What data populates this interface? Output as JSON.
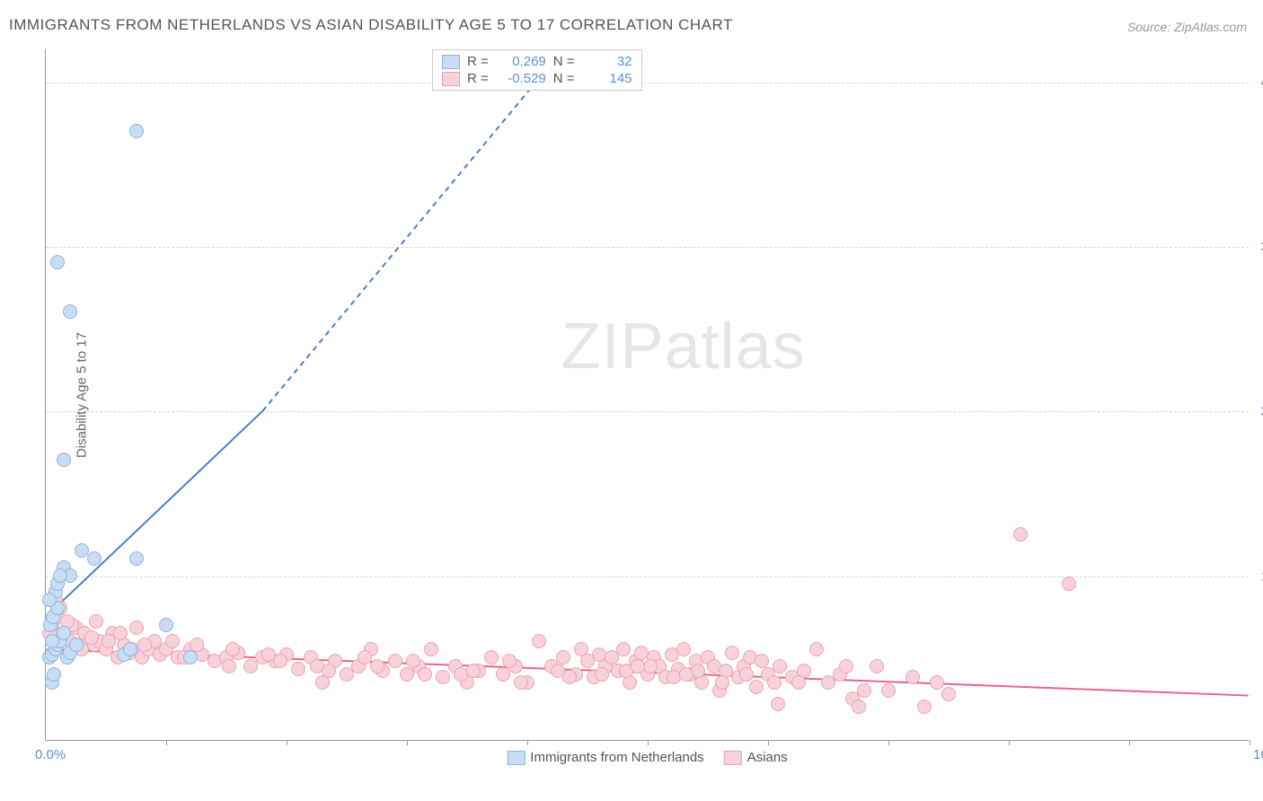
{
  "title": "IMMIGRANTS FROM NETHERLANDS VS ASIAN DISABILITY AGE 5 TO 17 CORRELATION CHART",
  "source": "Source: ZipAtlas.com",
  "yaxis_title": "Disability Age 5 to 17",
  "watermark_zip": "ZIP",
  "watermark_atlas": "atlas",
  "chart": {
    "type": "scatter",
    "xlim": [
      0,
      100
    ],
    "ylim": [
      0,
      42
    ],
    "xticks": [
      0,
      10,
      20,
      30,
      40,
      50,
      60,
      70,
      80,
      90,
      100
    ],
    "yticks": [
      10,
      20,
      30,
      40
    ],
    "xtick_label_min": "0.0%",
    "xtick_label_max": "100.0%",
    "ytick_labels": [
      "10.0%",
      "20.0%",
      "30.0%",
      "40.0%"
    ],
    "background_color": "#ffffff",
    "grid_color": "#d8d8d8",
    "axis_color": "#999999",
    "tick_label_color": "#5b8fd6",
    "axis_title_color": "#666666",
    "marker_radius": 8,
    "marker_stroke_width": 1.5,
    "series": [
      {
        "name": "Immigrants from Netherlands",
        "fill": "#c9ddf2",
        "stroke": "#8bb4e0",
        "line_color": "#4a7fc9",
        "R": "0.269",
        "N": "32",
        "trend": {
          "x1": 0,
          "y1": 7.5,
          "x2": 18,
          "y2": 20,
          "dashed_to_x": 43,
          "dashed_to_y": 42
        },
        "points": [
          [
            0.3,
            5.0
          ],
          [
            0.5,
            5.2
          ],
          [
            0.8,
            5.5
          ],
          [
            1.0,
            5.8
          ],
          [
            1.2,
            6.0
          ],
          [
            1.5,
            6.5
          ],
          [
            0.4,
            7.0
          ],
          [
            0.6,
            7.5
          ],
          [
            1.0,
            8.0
          ],
          [
            1.8,
            5.0
          ],
          [
            2.0,
            5.3
          ],
          [
            2.5,
            5.8
          ],
          [
            0.5,
            3.5
          ],
          [
            0.7,
            4.0
          ],
          [
            1.5,
            10.5
          ],
          [
            2.0,
            10.0
          ],
          [
            3.0,
            11.5
          ],
          [
            4.0,
            11.0
          ],
          [
            6.5,
            5.2
          ],
          [
            7.0,
            5.5
          ],
          [
            7.5,
            11.0
          ],
          [
            0.8,
            9.0
          ],
          [
            1.0,
            9.5
          ],
          [
            1.2,
            10.0
          ],
          [
            1.5,
            17.0
          ],
          [
            1.0,
            29.0
          ],
          [
            2.0,
            26.0
          ],
          [
            7.5,
            37.0
          ],
          [
            10.0,
            7.0
          ],
          [
            12.0,
            5.0
          ],
          [
            0.5,
            6.0
          ],
          [
            0.3,
            8.5
          ]
        ]
      },
      {
        "name": "Asians",
        "fill": "#f7d2da",
        "stroke": "#eda2b5",
        "line_color": "#e8648a",
        "R": "-0.529",
        "N": "145",
        "trend": {
          "x1": 0,
          "y1": 5.5,
          "x2": 100,
          "y2": 2.7
        },
        "points": [
          [
            0.5,
            7.0
          ],
          [
            1.0,
            7.5
          ],
          [
            1.5,
            6.5
          ],
          [
            2.0,
            6.0
          ],
          [
            2.5,
            6.8
          ],
          [
            3.0,
            5.5
          ],
          [
            3.5,
            6.2
          ],
          [
            4.0,
            5.8
          ],
          [
            4.5,
            6.0
          ],
          [
            5.0,
            5.5
          ],
          [
            5.5,
            6.5
          ],
          [
            6.0,
            5.0
          ],
          [
            6.5,
            5.8
          ],
          [
            7.0,
            5.3
          ],
          [
            7.5,
            6.8
          ],
          [
            8.0,
            5.0
          ],
          [
            8.5,
            5.5
          ],
          [
            9.0,
            6.0
          ],
          [
            9.5,
            5.2
          ],
          [
            10.0,
            5.5
          ],
          [
            11.0,
            5.0
          ],
          [
            12.0,
            5.5
          ],
          [
            13.0,
            5.2
          ],
          [
            14.0,
            4.8
          ],
          [
            15.0,
            5.0
          ],
          [
            16.0,
            5.3
          ],
          [
            17.0,
            4.5
          ],
          [
            18.0,
            5.0
          ],
          [
            19.0,
            4.8
          ],
          [
            20.0,
            5.2
          ],
          [
            21.0,
            4.3
          ],
          [
            22.0,
            5.0
          ],
          [
            23.0,
            3.5
          ],
          [
            24.0,
            4.8
          ],
          [
            25.0,
            4.0
          ],
          [
            26.0,
            4.5
          ],
          [
            27.0,
            5.5
          ],
          [
            28.0,
            4.2
          ],
          [
            29.0,
            4.8
          ],
          [
            30.0,
            4.0
          ],
          [
            31.0,
            4.5
          ],
          [
            32.0,
            5.5
          ],
          [
            33.0,
            3.8
          ],
          [
            34.0,
            4.5
          ],
          [
            35.0,
            3.5
          ],
          [
            36.0,
            4.2
          ],
          [
            37.0,
            5.0
          ],
          [
            38.0,
            4.0
          ],
          [
            39.0,
            4.5
          ],
          [
            40.0,
            3.5
          ],
          [
            41.0,
            6.0
          ],
          [
            42.0,
            4.5
          ],
          [
            43.0,
            5.0
          ],
          [
            44.0,
            4.0
          ],
          [
            44.5,
            5.5
          ],
          [
            45.0,
            4.8
          ],
          [
            45.5,
            3.8
          ],
          [
            46.0,
            5.2
          ],
          [
            46.5,
            4.5
          ],
          [
            47.0,
            5.0
          ],
          [
            47.5,
            4.2
          ],
          [
            48.0,
            5.5
          ],
          [
            48.5,
            3.5
          ],
          [
            49.0,
            4.8
          ],
          [
            49.5,
            5.3
          ],
          [
            50.0,
            4.0
          ],
          [
            50.5,
            5.0
          ],
          [
            51.0,
            4.5
          ],
          [
            51.5,
            3.8
          ],
          [
            52.0,
            5.2
          ],
          [
            52.5,
            4.3
          ],
          [
            53.0,
            5.5
          ],
          [
            53.5,
            4.0
          ],
          [
            54.0,
            4.8
          ],
          [
            54.5,
            3.5
          ],
          [
            55.0,
            5.0
          ],
          [
            55.5,
            4.5
          ],
          [
            56.0,
            3.0
          ],
          [
            56.5,
            4.2
          ],
          [
            57.0,
            5.3
          ],
          [
            57.5,
            3.8
          ],
          [
            58.0,
            4.5
          ],
          [
            58.5,
            5.0
          ],
          [
            59.0,
            3.2
          ],
          [
            59.5,
            4.8
          ],
          [
            60.0,
            4.0
          ],
          [
            60.5,
            3.5
          ],
          [
            61.0,
            4.5
          ],
          [
            62.0,
            3.8
          ],
          [
            63.0,
            4.2
          ],
          [
            64.0,
            5.5
          ],
          [
            65.0,
            3.5
          ],
          [
            66.0,
            4.0
          ],
          [
            67.0,
            2.5
          ],
          [
            68.0,
            3.0
          ],
          [
            69.0,
            4.5
          ],
          [
            72.0,
            3.8
          ],
          [
            73.0,
            2.0
          ],
          [
            74.0,
            3.5
          ],
          [
            75.0,
            2.8
          ],
          [
            81.0,
            12.5
          ],
          [
            85.0,
            9.5
          ],
          [
            0.8,
            8.5
          ],
          [
            1.2,
            8.0
          ],
          [
            2.2,
            7.0
          ],
          [
            3.2,
            6.5
          ],
          [
            4.2,
            7.2
          ],
          [
            5.2,
            6.0
          ],
          [
            6.2,
            6.5
          ],
          [
            8.2,
            5.8
          ],
          [
            10.5,
            6.0
          ],
          [
            12.5,
            5.8
          ],
          [
            15.5,
            5.5
          ],
          [
            18.5,
            5.2
          ],
          [
            22.5,
            4.5
          ],
          [
            26.5,
            5.0
          ],
          [
            30.5,
            4.8
          ],
          [
            34.5,
            4.0
          ],
          [
            38.5,
            4.8
          ],
          [
            42.5,
            4.2
          ],
          [
            46.2,
            4.0
          ],
          [
            50.2,
            4.5
          ],
          [
            54.2,
            4.2
          ],
          [
            58.2,
            4.0
          ],
          [
            62.5,
            3.5
          ],
          [
            66.5,
            4.5
          ],
          [
            70.0,
            3.0
          ],
          [
            60.8,
            2.2
          ],
          [
            67.5,
            2.0
          ],
          [
            48.2,
            4.2
          ],
          [
            52.2,
            3.8
          ],
          [
            56.2,
            3.5
          ],
          [
            43.5,
            3.8
          ],
          [
            39.5,
            3.5
          ],
          [
            35.5,
            4.2
          ],
          [
            31.5,
            4.0
          ],
          [
            27.5,
            4.5
          ],
          [
            23.5,
            4.2
          ],
          [
            19.5,
            4.8
          ],
          [
            15.2,
            4.5
          ],
          [
            11.5,
            5.0
          ],
          [
            7.2,
            5.5
          ],
          [
            3.8,
            6.2
          ],
          [
            1.8,
            7.2
          ],
          [
            0.3,
            6.5
          ],
          [
            49.2,
            4.5
          ],
          [
            53.2,
            4.0
          ]
        ]
      }
    ]
  },
  "legend_top": {
    "r_label": "R =",
    "n_label": "N ="
  },
  "bottom_legend_labels": [
    "Immigrants from Netherlands",
    "Asians"
  ]
}
